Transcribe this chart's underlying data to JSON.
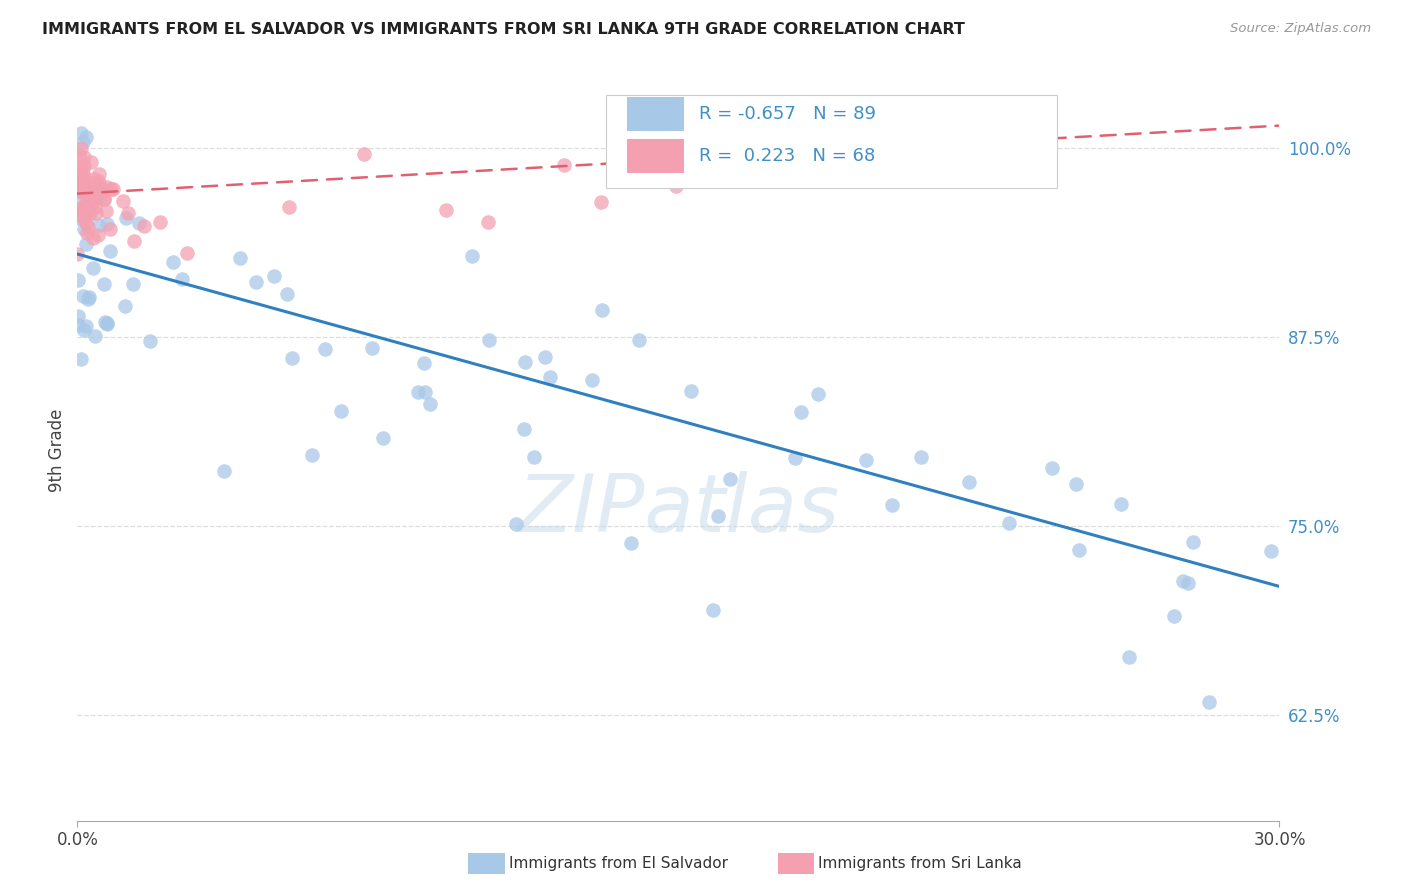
{
  "title": "IMMIGRANTS FROM EL SALVADOR VS IMMIGRANTS FROM SRI LANKA 9TH GRADE CORRELATION CHART",
  "source": "Source: ZipAtlas.com",
  "ylabel": "9th Grade",
  "legend_labels": [
    "Immigrants from El Salvador",
    "Immigrants from Sri Lanka"
  ],
  "el_salvador_R": -0.657,
  "el_salvador_N": 89,
  "sri_lanka_R": 0.223,
  "sri_lanka_N": 68,
  "blue_color": "#A8C8E8",
  "pink_color": "#F4A0B0",
  "blue_line_color": "#3080C0",
  "pink_line_color": "#E06070",
  "text_color_blue": "#4090C8",
  "background_color": "#FFFFFF",
  "grid_color": "#DDDDDD",
  "xlim": [
    0.0,
    0.3
  ],
  "ylim": [
    0.555,
    1.045
  ],
  "ytick_vals": [
    0.625,
    0.75,
    0.875,
    1.0
  ],
  "ytick_labels": [
    "62.5%",
    "75.0%",
    "87.5%",
    "100.0%"
  ]
}
